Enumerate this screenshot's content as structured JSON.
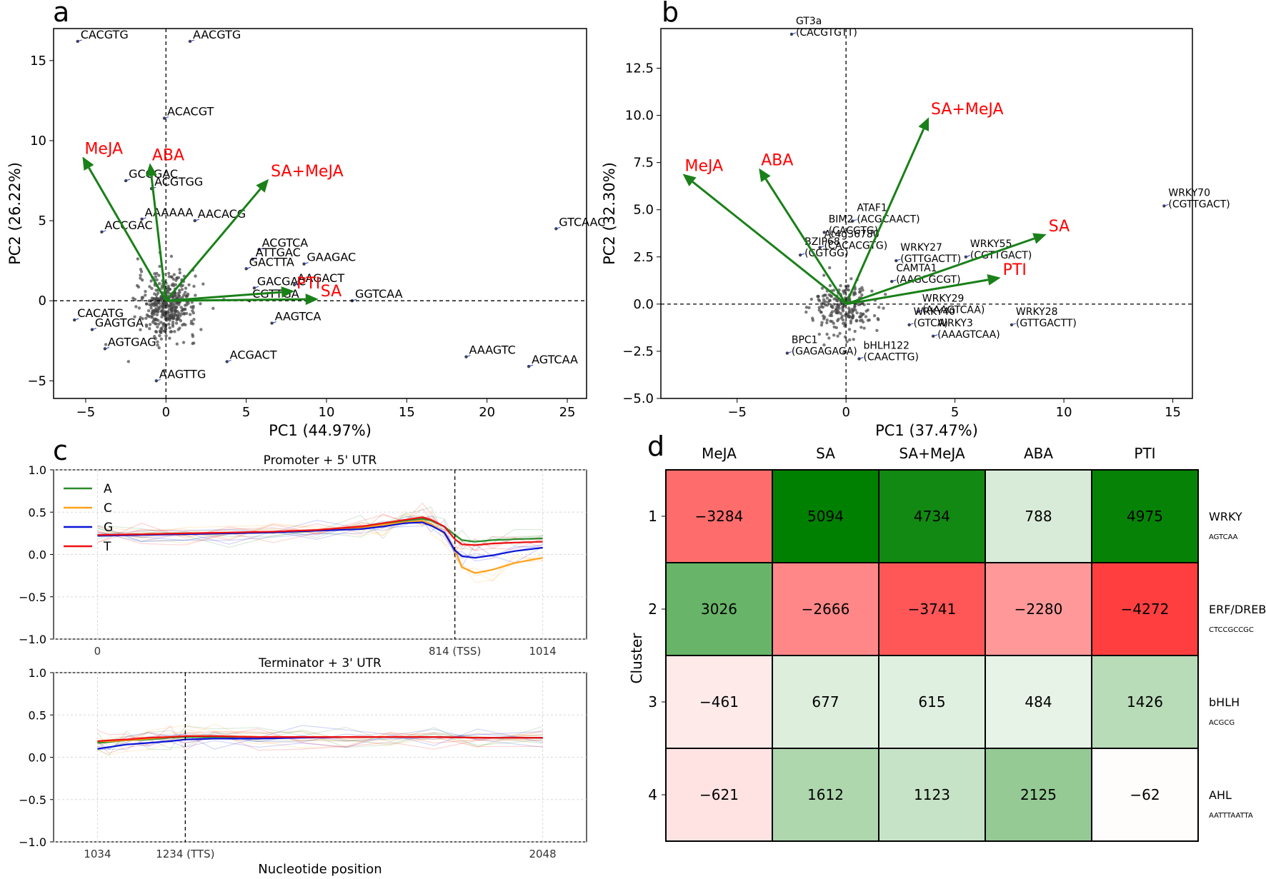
{
  "panel_labels": [
    "a",
    "b",
    "c",
    "d"
  ],
  "chart_data": [
    {
      "panel": "a",
      "type": "scatter",
      "xlabel": "PC1 (44.97%)",
      "ylabel": "PC2 (26.22%)",
      "xlim": [
        -7,
        26.2
      ],
      "ylim": [
        -6.1,
        17
      ],
      "xticks": [
        -5,
        0,
        5,
        10,
        15,
        20,
        25
      ],
      "yticks": [
        -5,
        0,
        5,
        10,
        15
      ],
      "reference_lines": {
        "x": 0,
        "y": 0,
        "style": "dashed"
      },
      "vectors": [
        {
          "name": "MeJA",
          "x": -5.2,
          "y": 9.0
        },
        {
          "name": "ABA",
          "x": -1.0,
          "y": 8.6
        },
        {
          "name": "SA+MeJA",
          "x": 6.4,
          "y": 7.6
        },
        {
          "name": "PTI",
          "x": 8.0,
          "y": 0.6
        },
        {
          "name": "SA",
          "x": 9.5,
          "y": 0.1
        }
      ],
      "labeled_points": [
        {
          "label": "CACGTG",
          "x": -5.5,
          "y": 16.2
        },
        {
          "label": "AACGTG",
          "x": 1.5,
          "y": 16.2
        },
        {
          "label": "ACACGT",
          "x": -0.1,
          "y": 11.4
        },
        {
          "label": "GCCGAC",
          "x": -2.5,
          "y": 7.5
        },
        {
          "label": "ACGTGG",
          "x": -0.9,
          "y": 7.0
        },
        {
          "label": "AACACG",
          "x": 1.8,
          "y": 5.0
        },
        {
          "label": "AAAAAA",
          "x": -1.5,
          "y": 5.1
        },
        {
          "label": "ACCGAC",
          "x": -4.0,
          "y": 4.3
        },
        {
          "label": "GTCAAC",
          "x": 24.3,
          "y": 4.5
        },
        {
          "label": "ACGTCA",
          "x": 5.8,
          "y": 3.2
        },
        {
          "label": "ATTGAC",
          "x": 5.4,
          "y": 2.6
        },
        {
          "label": "GAAGAC",
          "x": 8.6,
          "y": 2.3
        },
        {
          "label": "GACTTA",
          "x": 5.0,
          "y": 2.0
        },
        {
          "label": "GACGAC",
          "x": 5.5,
          "y": 0.8
        },
        {
          "label": "AAGACT",
          "x": 8.0,
          "y": 1.0
        },
        {
          "label": "CGTTGA",
          "x": 5.2,
          "y": 0.0
        },
        {
          "label": "GGTCAA",
          "x": 11.6,
          "y": 0.0
        },
        {
          "label": "CACATG",
          "x": -5.7,
          "y": -1.2
        },
        {
          "label": "GAGTGA",
          "x": -4.6,
          "y": -1.8
        },
        {
          "label": "AGTGAG",
          "x": -3.8,
          "y": -3.0
        },
        {
          "label": "AAGTCA",
          "x": 6.6,
          "y": -1.4
        },
        {
          "label": "AAAGTC",
          "x": 18.7,
          "y": -3.5
        },
        {
          "label": "AGTCAA",
          "x": 22.6,
          "y": -4.1
        },
        {
          "label": "ACGACT",
          "x": 3.8,
          "y": -3.8
        },
        {
          "label": "AAGTTG",
          "x": -0.6,
          "y": -5.0
        }
      ]
    },
    {
      "panel": "b",
      "type": "scatter",
      "xlabel": "PC1 (37.47%)",
      "ylabel": "PC2 (32.30%)",
      "xlim": [
        -8.5,
        15.9
      ],
      "ylim": [
        -5,
        14.6
      ],
      "xticks": [
        -5,
        0,
        5,
        10,
        15
      ],
      "yticks": [
        -5.0,
        -2.5,
        0.0,
        2.5,
        5.0,
        7.5,
        10.0,
        12.5
      ],
      "reference_lines": {
        "x": 0,
        "y": 0,
        "style": "dashed"
      },
      "vectors": [
        {
          "name": "MeJA",
          "x": -7.5,
          "y": 6.9
        },
        {
          "name": "ABA",
          "x": -4.0,
          "y": 7.2
        },
        {
          "name": "SA+MeJA",
          "x": 3.8,
          "y": 9.9
        },
        {
          "name": "SA",
          "x": 9.2,
          "y": 3.7
        },
        {
          "name": "PTI",
          "x": 7.1,
          "y": 1.4
        }
      ],
      "labeled_points": [
        {
          "label": "GT3a",
          "sublabel": "(CACGTGTT)",
          "x": -2.5,
          "y": 14.3
        },
        {
          "label": "WRKY70",
          "sublabel": "(CGTTGACT)",
          "x": 14.6,
          "y": 5.2
        },
        {
          "label": "ATAF1",
          "sublabel": "(ACGCAACT)",
          "x": 0.3,
          "y": 4.4
        },
        {
          "label": "BIM2",
          "sublabel": "(CACGTG)",
          "x": -1.0,
          "y": 3.8
        },
        {
          "label": "At4g36780",
          "sublabel": "(CACACGTG)",
          "x": -1.2,
          "y": 3.0
        },
        {
          "label": "WRKY27",
          "sublabel": "(GTTGACTT)",
          "x": 2.3,
          "y": 2.3
        },
        {
          "label": "WRKY55",
          "sublabel": "(CGTTGACT)",
          "x": 5.5,
          "y": 2.5
        },
        {
          "label": "BZIP68",
          "sublabel": "(CGTGG)",
          "x": -2.1,
          "y": 2.6
        },
        {
          "label": "CAMTA1",
          "sublabel": "(AAGCGCGT)",
          "x": 2.1,
          "y": 1.2
        },
        {
          "label": "WRKY29",
          "sublabel": "(AAAGTCAA)",
          "x": 3.3,
          "y": -0.4
        },
        {
          "label": "WRKY40",
          "sublabel": "(GTCA)",
          "x": 2.9,
          "y": -1.1
        },
        {
          "label": "WRKY28",
          "sublabel": "(GTTGACTT)",
          "x": 7.6,
          "y": -1.1
        },
        {
          "label": "WRKY3",
          "sublabel": "(AAAGTCAA)",
          "x": 4.0,
          "y": -1.7
        },
        {
          "label": "BPC1",
          "sublabel": "(GAGAGAGA)",
          "x": -2.7,
          "y": -2.6
        },
        {
          "label": "bHLH122",
          "sublabel": "(CAACTTG)",
          "x": 0.6,
          "y": -2.9
        }
      ]
    },
    {
      "panel": "c-top",
      "type": "line",
      "title": "Promoter + 5' UTR",
      "xlim": [
        -100,
        1114
      ],
      "ylim": [
        -1.0,
        1.0
      ],
      "xtick_labels": [
        "0",
        "814 (TSS)",
        "1014"
      ],
      "xtick_values": [
        0,
        814,
        1014
      ],
      "yticks": [
        -1.0,
        -0.5,
        0.0,
        0.5,
        1.0
      ],
      "vline": 814,
      "legend": [
        "A",
        "C",
        "G",
        "T"
      ],
      "series": [
        {
          "name": "A",
          "x": [
            0,
            100,
            200,
            300,
            400,
            500,
            600,
            650,
            700,
            740,
            760,
            790,
            814,
            830,
            860,
            900,
            950,
            1014
          ],
          "values": [
            0.23,
            0.24,
            0.25,
            0.25,
            0.26,
            0.28,
            0.32,
            0.36,
            0.4,
            0.42,
            0.4,
            0.33,
            0.23,
            0.17,
            0.15,
            0.17,
            0.18,
            0.19
          ]
        },
        {
          "name": "C",
          "x": [
            0,
            100,
            200,
            300,
            400,
            500,
            600,
            650,
            700,
            740,
            760,
            790,
            814,
            830,
            860,
            900,
            950,
            1014
          ],
          "values": [
            0.22,
            0.23,
            0.24,
            0.25,
            0.26,
            0.28,
            0.31,
            0.35,
            0.38,
            0.4,
            0.36,
            0.25,
            0.05,
            -0.15,
            -0.22,
            -0.18,
            -0.1,
            -0.04
          ]
        },
        {
          "name": "G",
          "x": [
            0,
            100,
            200,
            300,
            400,
            500,
            600,
            650,
            700,
            740,
            760,
            790,
            814,
            830,
            860,
            900,
            950,
            1014
          ],
          "values": [
            0.22,
            0.23,
            0.24,
            0.25,
            0.26,
            0.28,
            0.3,
            0.33,
            0.37,
            0.38,
            0.34,
            0.26,
            0.05,
            -0.02,
            -0.04,
            -0.01,
            0.04,
            0.08
          ]
        },
        {
          "name": "T",
          "x": [
            0,
            100,
            200,
            300,
            400,
            500,
            600,
            650,
            700,
            740,
            760,
            790,
            814,
            830,
            860,
            900,
            950,
            1014
          ],
          "values": [
            0.23,
            0.24,
            0.25,
            0.26,
            0.27,
            0.29,
            0.33,
            0.37,
            0.41,
            0.44,
            0.41,
            0.33,
            0.18,
            0.12,
            0.11,
            0.13,
            0.14,
            0.15
          ]
        }
      ]
    },
    {
      "panel": "c-bottom",
      "type": "line",
      "title": "Terminator + 3' UTR",
      "xlabel": "Nucleotide position",
      "xlim": [
        934,
        2148
      ],
      "ylim": [
        -1.0,
        1.0
      ],
      "xtick_labels": [
        "1034",
        "1234 (TTS)",
        "2048"
      ],
      "xtick_values": [
        1034,
        1234,
        2048
      ],
      "yticks": [
        -1.0,
        -0.5,
        0.0,
        0.5,
        1.0
      ],
      "vline": 1234,
      "series": [
        {
          "name": "A",
          "x": [
            1034,
            1060,
            1100,
            1150,
            1200,
            1234,
            1300,
            1400,
            1500,
            1600,
            1700,
            1800,
            1900,
            2048
          ],
          "values": [
            0.17,
            0.18,
            0.2,
            0.21,
            0.23,
            0.24,
            0.24,
            0.24,
            0.24,
            0.24,
            0.24,
            0.24,
            0.23,
            0.23
          ]
        },
        {
          "name": "C",
          "x": [
            1034,
            1060,
            1100,
            1150,
            1200,
            1234,
            1300,
            1400,
            1500,
            1600,
            1700,
            1800,
            1900,
            2048
          ],
          "values": [
            0.19,
            0.19,
            0.2,
            0.22,
            0.24,
            0.25,
            0.25,
            0.24,
            0.24,
            0.24,
            0.24,
            0.24,
            0.23,
            0.23
          ]
        },
        {
          "name": "G",
          "x": [
            1034,
            1060,
            1100,
            1150,
            1200,
            1234,
            1300,
            1400,
            1500,
            1600,
            1700,
            1800,
            1900,
            2048
          ],
          "values": [
            0.1,
            0.12,
            0.15,
            0.17,
            0.19,
            0.21,
            0.22,
            0.22,
            0.23,
            0.24,
            0.24,
            0.24,
            0.23,
            0.23
          ]
        },
        {
          "name": "T",
          "x": [
            1034,
            1060,
            1100,
            1150,
            1200,
            1234,
            1300,
            1400,
            1500,
            1600,
            1700,
            1800,
            1900,
            2048
          ],
          "values": [
            0.19,
            0.2,
            0.21,
            0.23,
            0.24,
            0.25,
            0.25,
            0.24,
            0.24,
            0.24,
            0.24,
            0.24,
            0.23,
            0.23
          ]
        }
      ]
    },
    {
      "panel": "d",
      "type": "heatmap",
      "ylabel": "Cluster",
      "columns": [
        "MeJA",
        "SA",
        "SA+MeJA",
        "ABA",
        "PTI"
      ],
      "rows": [
        "1",
        "2",
        "3",
        "4"
      ],
      "row_annotations": [
        {
          "family": "WRKY",
          "motif": "AGTCAA"
        },
        {
          "family": "ERF/DREB",
          "motif": "CTCCGCCGC"
        },
        {
          "family": "bHLH",
          "motif": "ACGCG"
        },
        {
          "family": "AHL",
          "motif": "AATTTAATTA"
        }
      ],
      "values": [
        [
          -3284,
          5094,
          4734,
          788,
          4975
        ],
        [
          3026,
          -2666,
          -3741,
          -2280,
          -4272
        ],
        [
          -461,
          677,
          615,
          484,
          1426
        ],
        [
          -621,
          1612,
          1123,
          2125,
          -62
        ]
      ],
      "vmin": -5100,
      "vmax": 5100
    }
  ],
  "colors": {
    "vector": "#1a8019",
    "vector_label": "#ff0000",
    "A": "#2b8c2b",
    "C": "#ffa11a",
    "G": "#0a14d6",
    "T": "#ee1111",
    "heat_pos": "#008000",
    "heat_neg": "#ff1a1a"
  }
}
